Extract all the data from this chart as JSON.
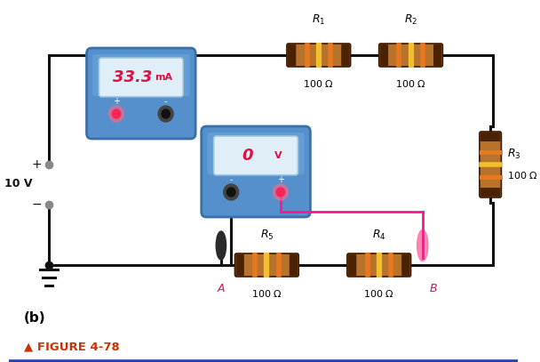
{
  "bg_color": "#ffffff",
  "title_text": "▲ FIGURE 4-78",
  "title_color": "#cc3300",
  "label_b": "(b)",
  "ammeter_display": "33.3",
  "ammeter_unit": "mA",
  "voltmeter_display": "0",
  "voltmeter_unit": "V",
  "voltage_label": "10 V",
  "wire_color": "#111111",
  "probe_color_pink": "#ff1493",
  "resistor_body": "#b8732a",
  "resistor_edge": "#3a1800",
  "band_orange": "#e87820",
  "band_yellow": "#f0c030",
  "band_dark": "#4a2200",
  "meter_blue_dark": "#3a6fa8",
  "meter_blue_mid": "#5590cc",
  "meter_blue_light": "#70aadd",
  "screen_bg": "#e0eef8",
  "screen_border": "#a0c8e0",
  "display_red": "#dd1144",
  "terminal_pink": "#ff88aa",
  "terminal_dark": "#222222",
  "ground_color": "#111111",
  "voltage_dot_color": "#888888",
  "point_label_color": "#dd1166"
}
